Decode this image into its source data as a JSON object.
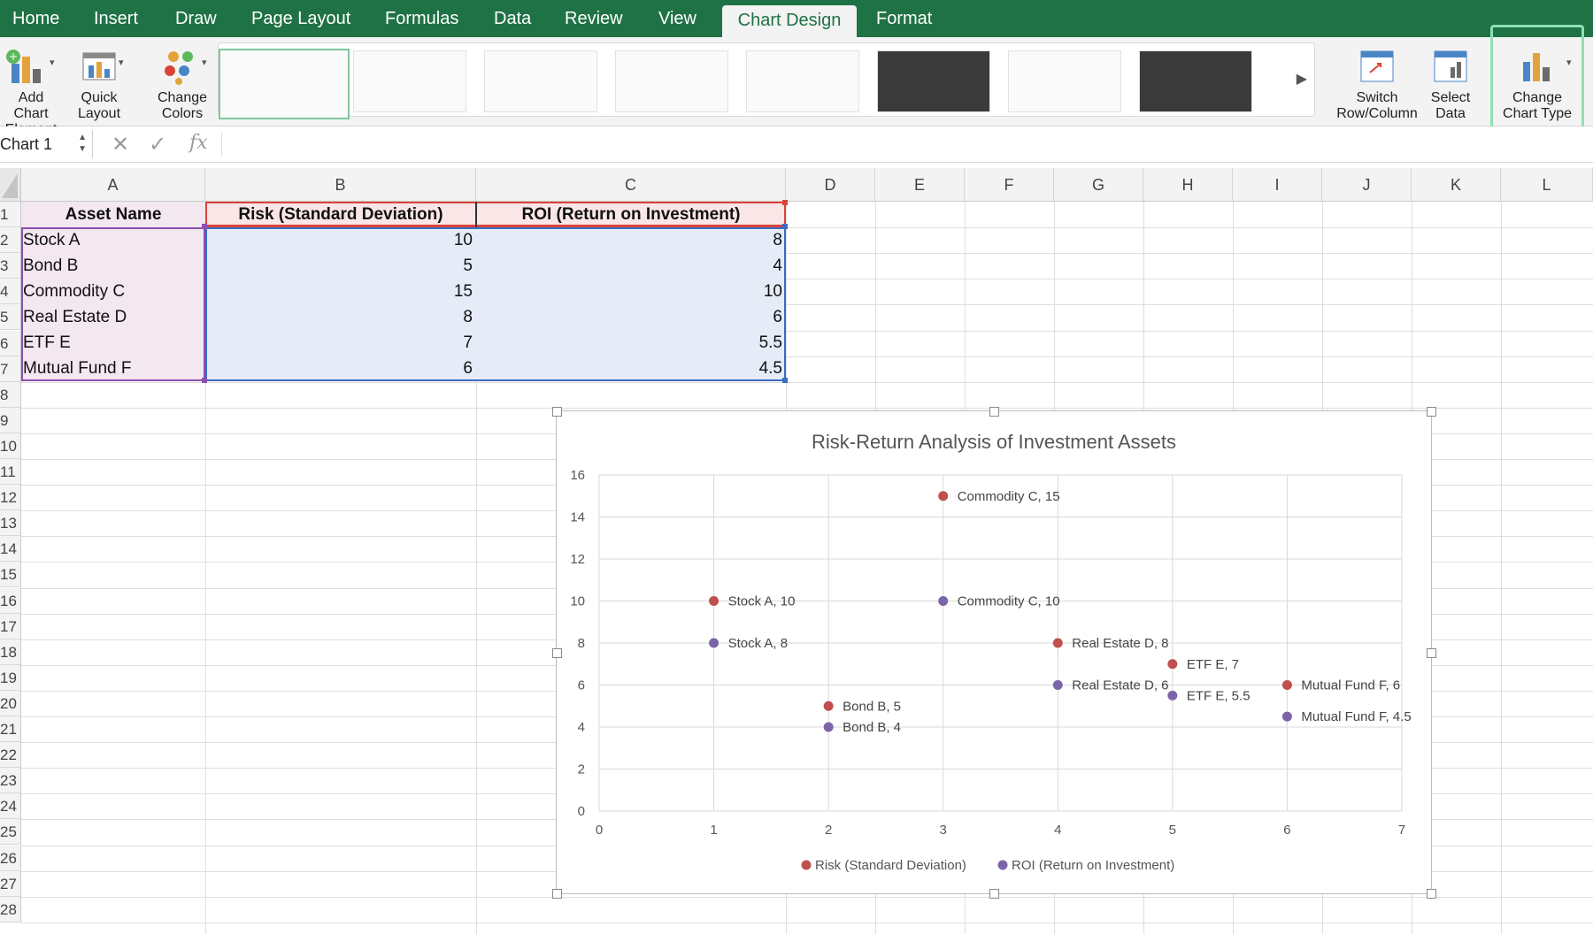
{
  "ribbon": {
    "tabs": [
      {
        "label": "Home",
        "active": false
      },
      {
        "label": "Insert",
        "active": false
      },
      {
        "label": "Draw",
        "active": false
      },
      {
        "label": "Page Layout",
        "active": false
      },
      {
        "label": "Formulas",
        "active": false
      },
      {
        "label": "Data",
        "active": false
      },
      {
        "label": "Review",
        "active": false
      },
      {
        "label": "View",
        "active": false
      },
      {
        "label": "Chart Design",
        "active": true
      },
      {
        "label": "Format",
        "active": false
      }
    ],
    "buttons": {
      "add_chart_element": "Add Chart\nElement",
      "quick_layout": "Quick\nLayout",
      "change_colors": "Change\nColors",
      "switch_row_column": "Switch\nRow/Column",
      "select_data": "Select\nData",
      "change_chart_type": "Change\nChart Type"
    },
    "style_gallery_count": 8
  },
  "formula_bar": {
    "name_box": "Chart 1",
    "fx_label": "fx"
  },
  "sheet": {
    "columns": [
      "A",
      "B",
      "C",
      "D",
      "E",
      "F",
      "G",
      "H",
      "I",
      "J",
      "K",
      "L"
    ],
    "rows": [
      "1",
      "2",
      "3",
      "4",
      "5",
      "6",
      "7",
      "8",
      "9",
      "10",
      "11",
      "12",
      "13",
      "14",
      "15",
      "16",
      "17",
      "18",
      "19",
      "20",
      "21",
      "22",
      "23",
      "24",
      "25",
      "26",
      "27",
      "28"
    ],
    "headers": [
      "Asset Name",
      "Risk (Standard Deviation)",
      "ROI (Return on Investment)"
    ],
    "data": [
      [
        "Stock A",
        "10",
        "8"
      ],
      [
        "Bond B",
        "5",
        "4"
      ],
      [
        "Commodity C",
        "15",
        "10"
      ],
      [
        "Real Estate D",
        "8",
        "6"
      ],
      [
        "ETF E",
        "7",
        "5.5"
      ],
      [
        "Mutual Fund F",
        "6",
        "4.5"
      ]
    ]
  },
  "chart_data": {
    "type": "scatter",
    "title": "Risk-Return Analysis of Investment Assets",
    "xlim": [
      0,
      7
    ],
    "ylim": [
      0,
      16
    ],
    "x_ticks": [
      "0",
      "1",
      "2",
      "3",
      "4",
      "5",
      "6",
      "7"
    ],
    "y_ticks": [
      "0",
      "2",
      "4",
      "6",
      "8",
      "10",
      "12",
      "14",
      "16"
    ],
    "grid": true,
    "legend_position": "bottom",
    "series": [
      {
        "name": "Risk (Standard Deviation)",
        "color": "#c0504d",
        "points": [
          {
            "x": 1,
            "y": 10,
            "label": "Stock A, 10"
          },
          {
            "x": 2,
            "y": 5,
            "label": "Bond B, 5"
          },
          {
            "x": 3,
            "y": 15,
            "label": "Commodity C, 15"
          },
          {
            "x": 4,
            "y": 8,
            "label": "Real Estate D, 8"
          },
          {
            "x": 5,
            "y": 7,
            "label": "ETF E, 7"
          },
          {
            "x": 6,
            "y": 6,
            "label": "Mutual Fund F, 6"
          }
        ]
      },
      {
        "name": "ROI (Return on Investment)",
        "color": "#7b64a8",
        "points": [
          {
            "x": 1,
            "y": 8,
            "label": "Stock A, 8"
          },
          {
            "x": 2,
            "y": 4,
            "label": "Bond B, 4"
          },
          {
            "x": 3,
            "y": 10,
            "label": "Commodity C, 10"
          },
          {
            "x": 4,
            "y": 6,
            "label": "Real Estate D, 6"
          },
          {
            "x": 5,
            "y": 5.5,
            "label": "ETF E, 5.5"
          },
          {
            "x": 6,
            "y": 4.5,
            "label": "Mutual Fund F, 4.5"
          }
        ]
      }
    ]
  },
  "colors": {
    "ribbon_green": "#1f7245",
    "name_range_border": "#8a4fb0",
    "x_range_border": "#d9443a",
    "y_range_border": "#3a6bc4"
  }
}
